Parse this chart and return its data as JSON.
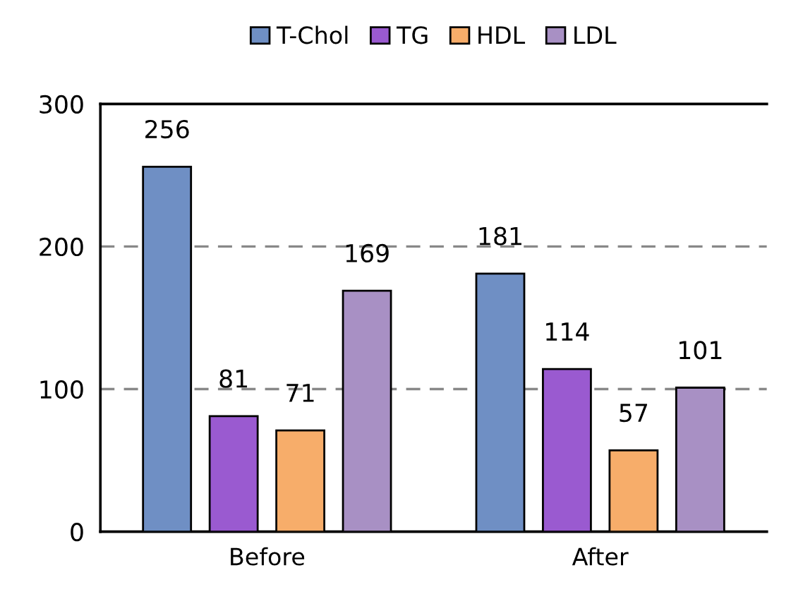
{
  "chart_data": {
    "type": "bar",
    "categories": [
      "Before",
      "After"
    ],
    "series": [
      {
        "name": "T-Chol",
        "color": "#6f8fc4",
        "values": [
          256,
          181
        ]
      },
      {
        "name": "TG",
        "color": "#9a5ad0",
        "values": [
          81,
          114
        ]
      },
      {
        "name": "HDL",
        "color": "#f7ad6a",
        "values": [
          71,
          57
        ]
      },
      {
        "name": "LDL",
        "color": "#a890c4",
        "values": [
          169,
          101
        ]
      }
    ],
    "ylim": [
      0,
      300
    ],
    "yticks": [
      0,
      100,
      200,
      300
    ],
    "grid": "y",
    "legend": "top",
    "data_labels": true
  }
}
